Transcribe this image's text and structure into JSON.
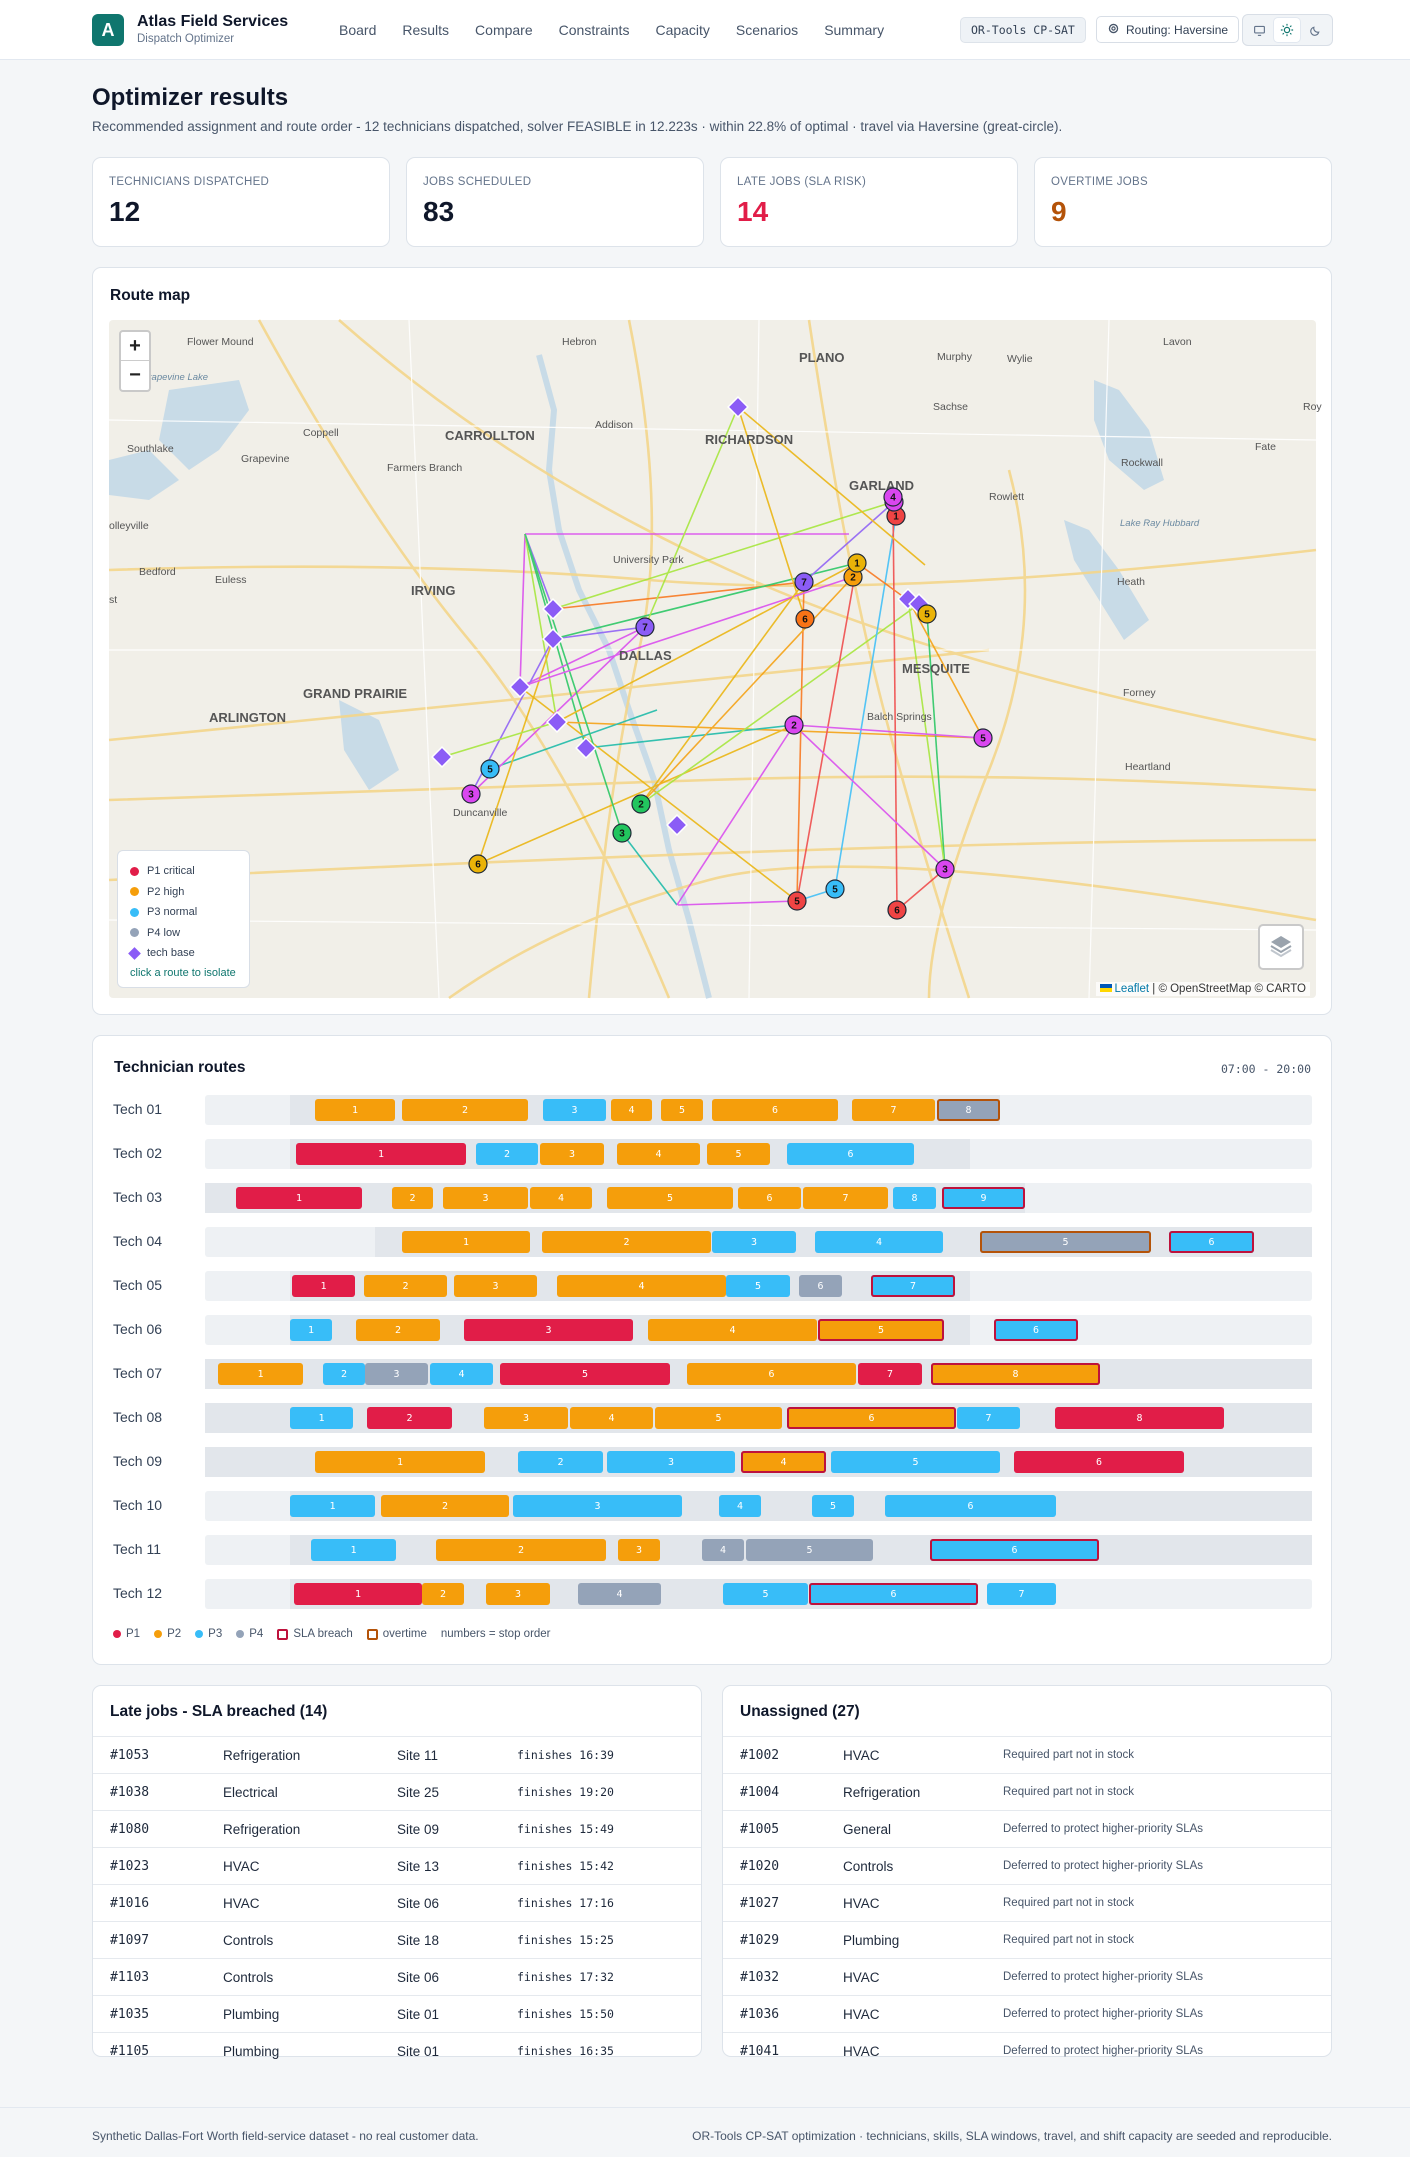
{
  "app": {
    "logo_letter": "A",
    "name": "Atlas Field Services",
    "subtitle": "Dispatch Optimizer"
  },
  "nav": [
    "Board",
    "Results",
    "Compare",
    "Constraints",
    "Capacity",
    "Scenarios",
    "Summary"
  ],
  "header": {
    "solver_badge": "OR-Tools CP-SAT",
    "routing_label": "Routing: Haversine",
    "theme_active": "light"
  },
  "page": {
    "title": "Optimizer results",
    "subtitle": "Recommended assignment and route order - 12 technicians dispatched, solver FEASIBLE in 12.223s · within 22.8% of optimal · travel via Haversine (great-circle)."
  },
  "stats": [
    {
      "label": "TECHNICIANS DISPATCHED",
      "value": "12",
      "color": "#0f172a"
    },
    {
      "label": "JOBS SCHEDULED",
      "value": "83",
      "color": "#0f172a"
    },
    {
      "label": "LATE JOBS (SLA RISK)",
      "value": "14",
      "color": "#e11d48"
    },
    {
      "label": "OVERTIME JOBS",
      "value": "9",
      "color": "#b45309"
    }
  ],
  "route_map": {
    "title": "Route map",
    "zoom_in": "+",
    "zoom_out": "−",
    "place_labels": [
      {
        "text": "Flower Mound",
        "kind": "town"
      },
      {
        "text": "Hebron",
        "kind": "town"
      },
      {
        "text": "PLANO",
        "kind": "city"
      },
      {
        "text": "Murphy",
        "kind": "town"
      },
      {
        "text": "Wylie",
        "kind": "town"
      },
      {
        "text": "Lavon",
        "kind": "town"
      },
      {
        "text": "Grapevine Lake",
        "kind": "water"
      },
      {
        "text": "Sachse",
        "kind": "town"
      },
      {
        "text": "Roy",
        "kind": "town"
      },
      {
        "text": "Coppell",
        "kind": "town"
      },
      {
        "text": "Addison",
        "kind": "town"
      },
      {
        "text": "CARROLLTON",
        "kind": "city"
      },
      {
        "text": "RICHARDSON",
        "kind": "city"
      },
      {
        "text": "Southlake",
        "kind": "town"
      },
      {
        "text": "Grapevine",
        "kind": "town"
      },
      {
        "text": "Fate",
        "kind": "town"
      },
      {
        "text": "Farmers Branch",
        "kind": "town"
      },
      {
        "text": "Rockwall",
        "kind": "town"
      },
      {
        "text": "GARLAND",
        "kind": "city"
      },
      {
        "text": "Rowlett",
        "kind": "town"
      },
      {
        "text": "olleyville",
        "kind": "town"
      },
      {
        "text": "Lake Ray Hubbard",
        "kind": "water"
      },
      {
        "text": "University Park",
        "kind": "town"
      },
      {
        "text": "Bedford",
        "kind": "town"
      },
      {
        "text": "Euless",
        "kind": "town"
      },
      {
        "text": "Heath",
        "kind": "town"
      },
      {
        "text": "IRVING",
        "kind": "city"
      },
      {
        "text": "st",
        "kind": "town"
      },
      {
        "text": "DALLAS",
        "kind": "city"
      },
      {
        "text": "MESQUITE",
        "kind": "city"
      },
      {
        "text": "GRAND PRAIRIE",
        "kind": "city"
      },
      {
        "text": "Forney",
        "kind": "town"
      },
      {
        "text": "Balch Springs",
        "kind": "town"
      },
      {
        "text": "ARLINGTON",
        "kind": "city"
      },
      {
        "text": "Heartland",
        "kind": "town"
      },
      {
        "text": "Duncanville",
        "kind": "town"
      }
    ],
    "legend": [
      {
        "label": "P1 critical",
        "color": "#e11d48"
      },
      {
        "label": "P2 high",
        "color": "#f59e0b"
      },
      {
        "label": "P3 normal",
        "color": "#38bdf8"
      },
      {
        "label": "P4 low",
        "color": "#94a3b8"
      },
      {
        "label": "tech base",
        "color": "#8b5cf6"
      }
    ],
    "legend_hint": "click a route to isolate",
    "attribution_leaflet": "Leaflet",
    "attribution_rest": " | © OpenStreetMap © CARTO",
    "stop_labels": [
      "1",
      "2",
      "3",
      "4",
      "5",
      "6",
      "7"
    ]
  },
  "tech_routes": {
    "title": "Technician routes",
    "window": "07:00 - 20:00",
    "key": [
      {
        "label": "P1",
        "color": "#e11d48",
        "kind": "dot"
      },
      {
        "label": "P2",
        "color": "#f59e0b",
        "kind": "dot"
      },
      {
        "label": "P3",
        "color": "#38bdf8",
        "kind": "dot"
      },
      {
        "label": "P4",
        "color": "#94a3b8",
        "kind": "dot"
      },
      {
        "label": "SLA breach",
        "color": "#be123c",
        "kind": "box"
      },
      {
        "label": "overtime",
        "color": "#b45309",
        "kind": "box"
      },
      {
        "label": "numbers = stop order",
        "kind": "text"
      }
    ],
    "rows": [
      {
        "name": "Tech 01"
      },
      {
        "name": "Tech 02"
      },
      {
        "name": "Tech 03"
      },
      {
        "name": "Tech 04"
      },
      {
        "name": "Tech 05"
      },
      {
        "name": "Tech 06"
      },
      {
        "name": "Tech 07"
      },
      {
        "name": "Tech 08"
      },
      {
        "name": "Tech 09"
      },
      {
        "name": "Tech 10"
      },
      {
        "name": "Tech 11"
      },
      {
        "name": "Tech 12"
      }
    ]
  },
  "late_jobs": {
    "title": "Late jobs - SLA breached (14)",
    "rows": [
      {
        "id": "#1053",
        "type": "Refrigeration",
        "site": "Site 11",
        "finish": "finishes 16:39"
      },
      {
        "id": "#1038",
        "type": "Electrical",
        "site": "Site 25",
        "finish": "finishes 19:20"
      },
      {
        "id": "#1080",
        "type": "Refrigeration",
        "site": "Site 09",
        "finish": "finishes 15:49"
      },
      {
        "id": "#1023",
        "type": "HVAC",
        "site": "Site 13",
        "finish": "finishes 15:42"
      },
      {
        "id": "#1016",
        "type": "HVAC",
        "site": "Site 06",
        "finish": "finishes 17:16"
      },
      {
        "id": "#1097",
        "type": "Controls",
        "site": "Site 18",
        "finish": "finishes 15:25"
      },
      {
        "id": "#1103",
        "type": "Controls",
        "site": "Site 06",
        "finish": "finishes 17:32"
      },
      {
        "id": "#1035",
        "type": "Plumbing",
        "site": "Site 01",
        "finish": "finishes 15:50"
      },
      {
        "id": "#1105",
        "type": "Plumbing",
        "site": "Site 01",
        "finish": "finishes 16:35"
      }
    ]
  },
  "unassigned": {
    "title": "Unassigned (27)",
    "rows": [
      {
        "id": "#1002",
        "type": "HVAC",
        "reason": "Required part not in stock"
      },
      {
        "id": "#1004",
        "type": "Refrigeration",
        "reason": "Required part not in stock"
      },
      {
        "id": "#1005",
        "type": "General",
        "reason": "Deferred to protect higher-priority SLAs"
      },
      {
        "id": "#1020",
        "type": "Controls",
        "reason": "Deferred to protect higher-priority SLAs"
      },
      {
        "id": "#1027",
        "type": "HVAC",
        "reason": "Required part not in stock"
      },
      {
        "id": "#1029",
        "type": "Plumbing",
        "reason": "Required part not in stock"
      },
      {
        "id": "#1032",
        "type": "HVAC",
        "reason": "Deferred to protect higher-priority SLAs"
      },
      {
        "id": "#1036",
        "type": "HVAC",
        "reason": "Deferred to protect higher-priority SLAs"
      },
      {
        "id": "#1041",
        "type": "HVAC",
        "reason": "Deferred to protect higher-priority SLAs"
      }
    ]
  },
  "footer": {
    "left": "Synthetic Dallas-Fort Worth field-service dataset - no real customer data.",
    "right": "OR-Tools CP-SAT optimization · technicians, skills, SLA windows, travel, and shift capacity are seeded and reproducible."
  }
}
